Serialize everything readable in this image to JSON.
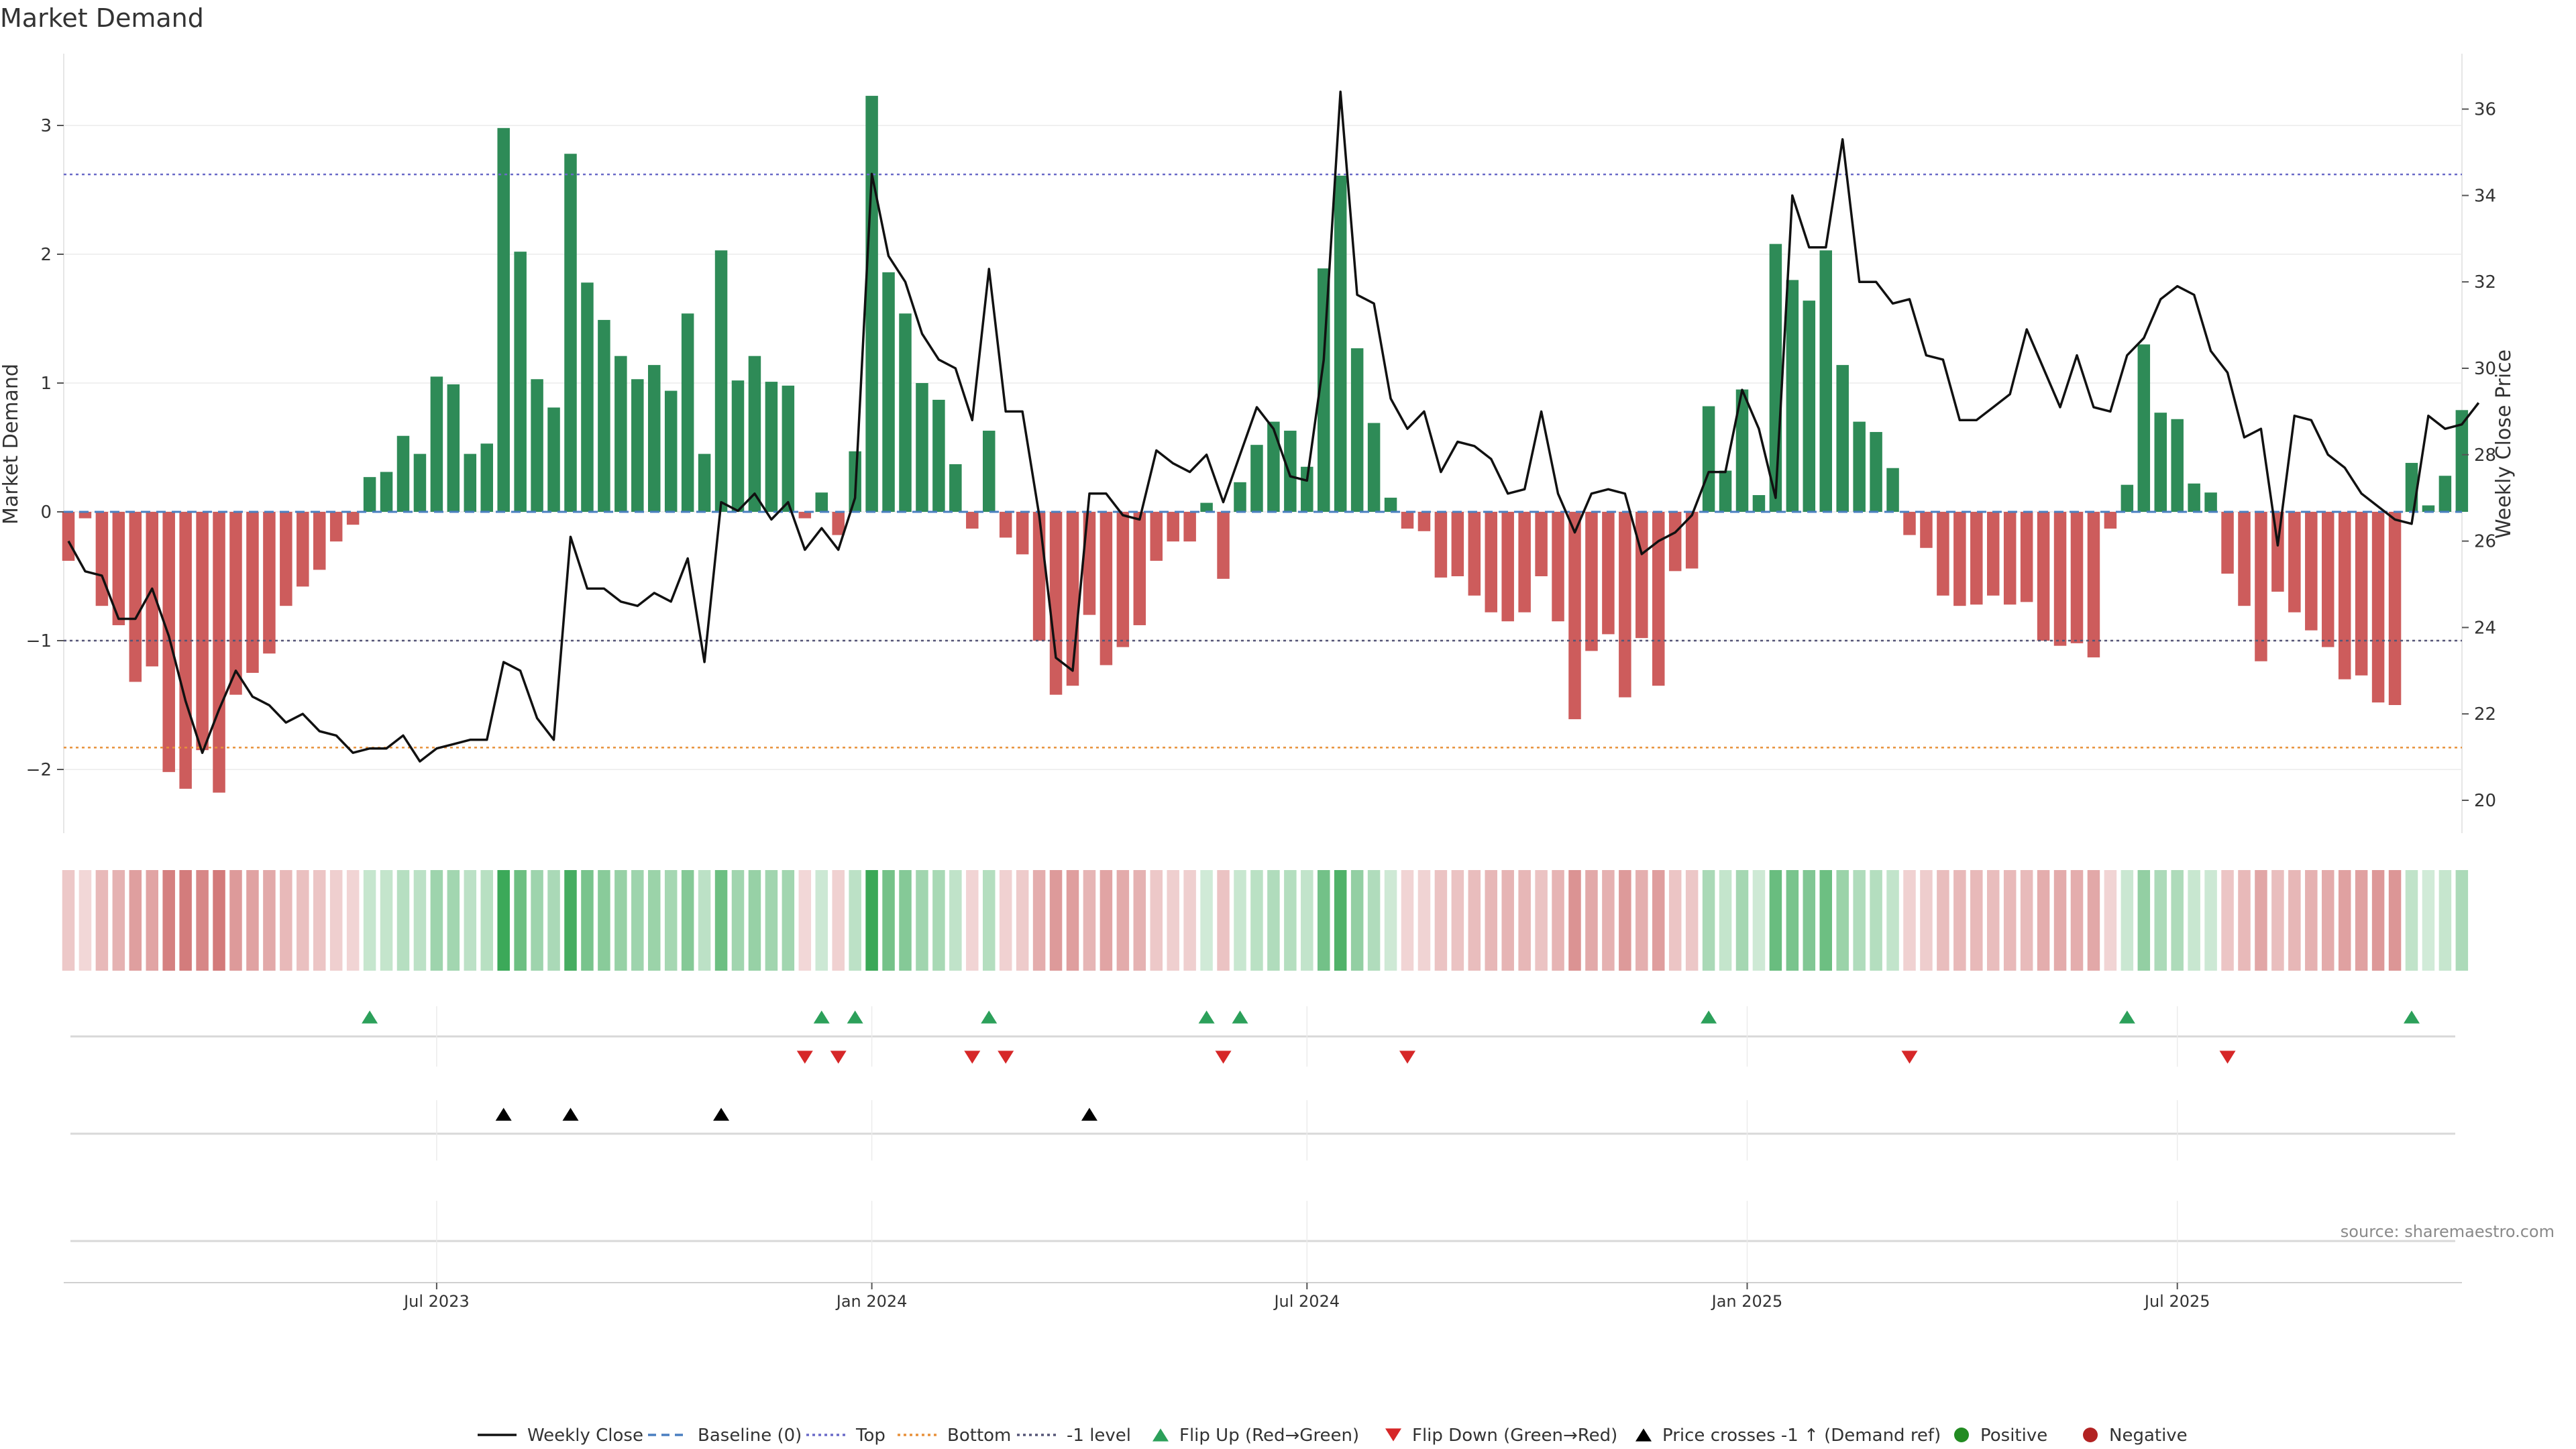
{
  "chart_data": {
    "type": "bar",
    "title": "Market Demand",
    "ylabel": "Market Demand",
    "y2label": "Weekly Close Price",
    "ylim": [
      -2.5,
      3.3
    ],
    "y2lim": [
      19.0,
      37.0
    ],
    "yticks": [
      -2,
      -1,
      0,
      1,
      2,
      3
    ],
    "yticklabels": [
      "−2",
      "−1",
      "0",
      "1",
      "2",
      "3"
    ],
    "y2ticks": [
      20,
      22,
      24,
      26,
      28,
      30,
      32,
      34,
      36
    ],
    "y2ticklabels": [
      "20",
      "22",
      "24",
      "26",
      "28",
      "30",
      "32",
      "34",
      "36"
    ],
    "reference_lines": {
      "top": 2.62,
      "bottom": -1.83,
      "minus_one": -1.0,
      "baseline": 0.0
    },
    "xtick_labels": [
      "Jul 2023",
      "Jan 2024",
      "Jul 2024",
      "Jan 2025",
      "Jul 2025"
    ],
    "xtick_weeks": [
      22,
      48,
      74,
      100.3,
      126
    ],
    "demand": [
      -0.38,
      -0.05,
      -0.73,
      -0.88,
      -1.32,
      -1.2,
      -2.02,
      -2.15,
      -1.85,
      -2.18,
      -1.42,
      -1.25,
      -1.1,
      -0.73,
      -0.58,
      -0.45,
      -0.23,
      -0.1,
      0.27,
      0.31,
      0.59,
      0.45,
      1.05,
      0.99,
      0.45,
      0.53,
      2.98,
      2.02,
      1.03,
      0.81,
      2.78,
      1.78,
      1.49,
      1.21,
      1.03,
      1.14,
      0.94,
      1.54,
      0.45,
      2.03,
      1.02,
      1.21,
      1.01,
      0.98,
      -0.05,
      0.15,
      -0.18,
      0.47,
      3.23,
      1.86,
      1.54,
      1.0,
      0.87,
      0.37,
      -0.13,
      0.63,
      -0.2,
      -0.33,
      -1.0,
      -1.42,
      -1.35,
      -0.8,
      -1.19,
      -1.05,
      -0.88,
      -0.38,
      -0.23,
      -0.23,
      0.07,
      -0.52,
      0.23,
      0.52,
      0.7,
      0.63,
      0.35,
      1.89,
      2.61,
      1.27,
      0.69,
      0.11,
      -0.13,
      -0.15,
      -0.51,
      -0.5,
      -0.65,
      -0.78,
      -0.85,
      -0.78,
      -0.5,
      -0.85,
      -1.61,
      -1.08,
      -0.95,
      -1.44,
      -0.98,
      -1.35,
      -0.46,
      -0.44,
      0.82,
      0.32,
      0.95,
      0.13,
      2.08,
      1.8,
      1.64,
      2.03,
      1.14,
      0.7,
      0.62,
      0.34,
      -0.18,
      -0.28,
      -0.65,
      -0.73,
      -0.72,
      -0.65,
      -0.72,
      -0.7,
      -1.0,
      -1.04,
      -1.02,
      -1.13,
      -0.13,
      0.21,
      1.3,
      0.77,
      0.72,
      0.22,
      0.15,
      -0.48,
      -0.73,
      -1.16,
      -0.62,
      -0.78,
      -0.92,
      -1.05,
      -1.3,
      -1.27,
      -1.48,
      -1.5,
      0.38,
      0.05,
      0.28,
      0.79
    ],
    "weekly_close": [
      26.0,
      25.3,
      25.2,
      24.2,
      24.2,
      24.9,
      23.8,
      22.3,
      21.1,
      22.1,
      23.0,
      22.4,
      22.2,
      21.8,
      22.0,
      21.6,
      21.5,
      21.1,
      21.2,
      21.2,
      21.5,
      20.9,
      21.2,
      21.3,
      21.4,
      21.4,
      23.2,
      23.0,
      21.9,
      21.4,
      26.1,
      24.9,
      24.9,
      24.6,
      24.5,
      24.8,
      24.6,
      25.6,
      23.2,
      26.9,
      26.7,
      27.1,
      26.5,
      26.9,
      25.8,
      26.3,
      25.8,
      27.0,
      34.5,
      32.6,
      32.0,
      30.8,
      30.2,
      30.0,
      28.8,
      32.3,
      29.0,
      29.0,
      26.6,
      23.3,
      23.0,
      27.1,
      27.1,
      26.6,
      26.5,
      28.1,
      27.8,
      27.6,
      28.0,
      26.9,
      28.0,
      29.1,
      28.6,
      27.5,
      27.4,
      30.2,
      36.4,
      31.7,
      31.5,
      29.3,
      28.6,
      29.0,
      27.6,
      28.3,
      28.2,
      27.9,
      27.1,
      27.2,
      29.0,
      27.1,
      26.2,
      27.1,
      27.2,
      27.1,
      25.7,
      26.0,
      26.2,
      26.6,
      27.6,
      27.6,
      29.5,
      28.6,
      27.0,
      34.0,
      32.8,
      32.8,
      35.3,
      32.0,
      32.0,
      31.5,
      31.6,
      30.3,
      30.2,
      28.8,
      28.8,
      29.1,
      29.4,
      30.9,
      30.0,
      29.1,
      30.3,
      29.1,
      29.0,
      30.3,
      30.7,
      31.6,
      31.9,
      31.7,
      30.4,
      29.9,
      28.4,
      28.6,
      25.9,
      28.9,
      28.8,
      28.0,
      27.7,
      27.1,
      26.8,
      26.5,
      26.4,
      28.9,
      28.6,
      28.7,
      29.2
    ],
    "flip_up_weeks": [
      18,
      45,
      47,
      55,
      68,
      70,
      98,
      123,
      140
    ],
    "flip_down_weeks": [
      44,
      46,
      54,
      56,
      69,
      80,
      110,
      129
    ],
    "price_cross_weeks": [
      26,
      30,
      39,
      61
    ],
    "legend": [
      "Weekly Close",
      "Baseline (0)",
      "Top",
      "Bottom",
      "-1 level",
      "Flip Up (Red→Green)",
      "Flip Down (Green→Red)",
      "Price crosses -1 ↑ (Demand ref)",
      "Positive",
      "Negative"
    ],
    "legend_placement": "bottom-center",
    "colors": {
      "positive": "#2e8b57",
      "negative": "#cd5c5c",
      "close": "#111111",
      "baseline": "#4a7fc0",
      "top": "#6a6ac8",
      "bottom": "#e8913a",
      "minus_one": "#555577",
      "flip_up": "#2ca05a",
      "flip_down": "#d62728",
      "price_cross": "#000000",
      "legend_positive": "#228b22",
      "legend_negative": "#b22222"
    }
  },
  "source_label": "source: sharemaestro.com"
}
